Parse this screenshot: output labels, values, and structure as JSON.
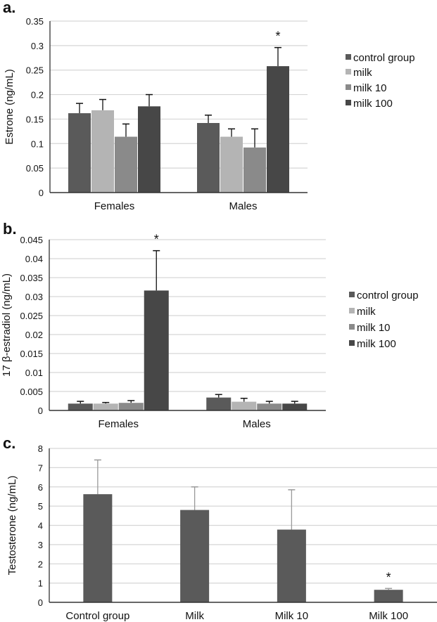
{
  "chart_data": [
    {
      "panel_label": "a.",
      "type": "bar",
      "title": "",
      "xlabel": "",
      "ylabel": "Estrone (ng/mL)",
      "ylim": [
        0,
        0.35
      ],
      "yticks": [
        "0",
        "0.05",
        "0.1",
        "0.15",
        "0.2",
        "0.25",
        "0.3",
        "0.35"
      ],
      "grid": true,
      "legend_position": "right",
      "categories": [
        "Females",
        "Males"
      ],
      "series": [
        {
          "name": "control group",
          "color": "#5a5a5a",
          "values": [
            0.162,
            0.142
          ],
          "errors": [
            0.02,
            0.016
          ]
        },
        {
          "name": "milk",
          "color": "#b4b4b4",
          "values": [
            0.168,
            0.114
          ],
          "errors": [
            0.022,
            0.016
          ]
        },
        {
          "name": "milk 10",
          "color": "#8a8a8a",
          "values": [
            0.114,
            0.092
          ],
          "errors": [
            0.026,
            0.038
          ]
        },
        {
          "name": "milk 100",
          "color": "#474747",
          "values": [
            0.176,
            0.258
          ],
          "errors": [
            0.024,
            0.038
          ]
        }
      ],
      "annotations": [
        {
          "text": "*",
          "category": "Males",
          "series": "milk 100"
        }
      ]
    },
    {
      "panel_label": "b.",
      "type": "bar",
      "title": "",
      "xlabel": "",
      "ylabel": "17 β-estradiol (ng/mL)",
      "ylim": [
        0,
        0.045
      ],
      "yticks": [
        "0",
        "0.005",
        "0.01",
        "0.015",
        "0.02",
        "0.025",
        "0.03",
        "0.035",
        "0.04",
        "0.045"
      ],
      "grid": true,
      "legend_position": "right",
      "categories": [
        "Females",
        "Males"
      ],
      "series": [
        {
          "name": "control group",
          "color": "#5a5a5a",
          "values": [
            0.0018,
            0.0034
          ],
          "errors": [
            0.0006,
            0.0008
          ]
        },
        {
          "name": "milk",
          "color": "#b4b4b4",
          "values": [
            0.0018,
            0.0023
          ],
          "errors": [
            0.0003,
            0.0009
          ]
        },
        {
          "name": "milk 10",
          "color": "#8a8a8a",
          "values": [
            0.002,
            0.0018
          ],
          "errors": [
            0.0006,
            0.0006
          ]
        },
        {
          "name": "milk 100",
          "color": "#474747",
          "values": [
            0.0316,
            0.0018
          ],
          "errors": [
            0.0105,
            0.0006
          ]
        }
      ],
      "annotations": [
        {
          "text": "*",
          "category": "Females",
          "series": "milk 100"
        }
      ]
    },
    {
      "panel_label": "c.",
      "type": "bar",
      "title": "",
      "xlabel": "",
      "ylabel": "Testosterone (ng/mL)",
      "ylim": [
        0,
        8
      ],
      "yticks": [
        "0",
        "1",
        "2",
        "3",
        "4",
        "5",
        "6",
        "7",
        "8"
      ],
      "grid": true,
      "legend_position": "none",
      "categories": [
        "Control group",
        "Milk",
        "Milk 10",
        "Milk 100"
      ],
      "series": [
        {
          "name": "Testosterone",
          "color": "#5a5a5a",
          "values": [
            5.62,
            4.8,
            3.78,
            0.65
          ],
          "errors": [
            1.78,
            1.2,
            2.07,
            0.07
          ]
        }
      ],
      "annotations": [
        {
          "text": "*",
          "category": "Milk 100",
          "series": "Testosterone"
        }
      ]
    }
  ]
}
